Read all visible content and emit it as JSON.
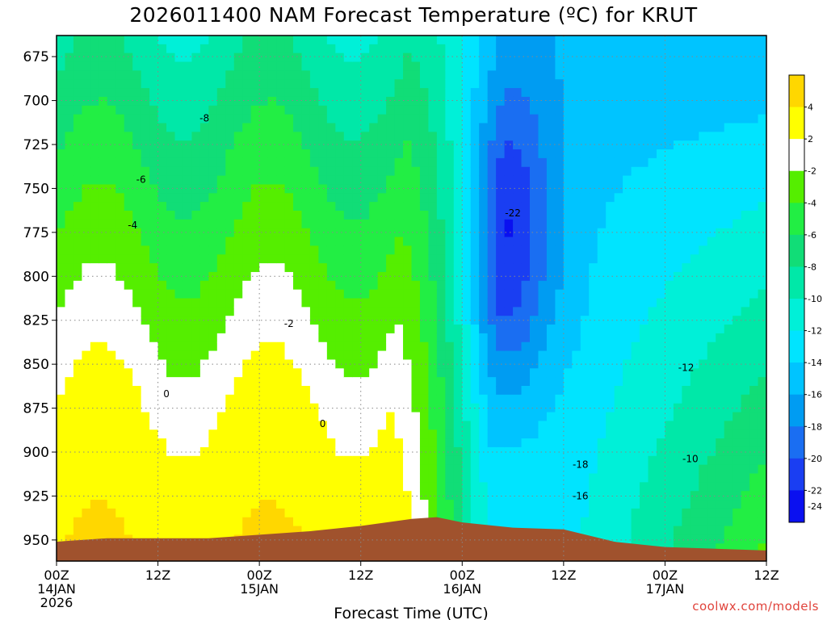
{
  "chart_data": {
    "type": "heatmap",
    "title": "2026011400 NAM Forecast Temperature (ºC) for KRUT",
    "xlabel": "Forecast Time (UTC)",
    "ylabel": "",
    "x_unit": "hours since 2026-01-14 00Z",
    "x_range": [
      0,
      84
    ],
    "y_range": [
      962,
      663
    ],
    "y_axis": "pressure (hPa), decreasing upward",
    "y_ticks": [
      675,
      700,
      725,
      750,
      775,
      800,
      825,
      850,
      875,
      900,
      925,
      950
    ],
    "x_ticks": [
      {
        "x": 0,
        "label": "00Z",
        "sub": "14JAN",
        "sub2": "2026"
      },
      {
        "x": 12,
        "label": "12Z",
        "sub": "",
        "sub2": ""
      },
      {
        "x": 24,
        "label": "00Z",
        "sub": "15JAN",
        "sub2": ""
      },
      {
        "x": 36,
        "label": "12Z",
        "sub": "",
        "sub2": ""
      },
      {
        "x": 48,
        "label": "00Z",
        "sub": "16JAN",
        "sub2": ""
      },
      {
        "x": 60,
        "label": "12Z",
        "sub": "",
        "sub2": ""
      },
      {
        "x": 72,
        "label": "00Z",
        "sub": "17JAN",
        "sub2": ""
      },
      {
        "x": 84,
        "label": "12Z",
        "sub": "",
        "sub2": ""
      }
    ],
    "grid": true,
    "legend": "colorbar right",
    "colorbar": {
      "levels": [
        4,
        2,
        -2,
        -4,
        -6,
        -8,
        -10,
        -12,
        -14,
        -16,
        -18,
        -20,
        -22,
        -24
      ],
      "colors": [
        "#ffd700",
        "#ffff00",
        "#ffffff",
        "#55ee00",
        "#22ee44",
        "#11dd77",
        "#00e8a8",
        "#00f0d8",
        "#00e4ff",
        "#00c4ff",
        "#009cf2",
        "#1a6ef2",
        "#1a3ef2",
        "#0a10f0"
      ]
    },
    "freezing_line_color": "#c8247a",
    "terrain_color": "#a0522d",
    "bands": [
      {
        "t": 0,
        "x": [
          0,
          3,
          6,
          9,
          12,
          15,
          18,
          21,
          24,
          27,
          30,
          33,
          36,
          39,
          42,
          45,
          48,
          51,
          54,
          57,
          60,
          63,
          66,
          69,
          72,
          75,
          78,
          81,
          84
        ],
        "top": [
          663,
          663,
          663,
          663,
          663,
          663,
          663,
          663,
          663,
          663,
          663,
          663,
          663,
          663,
          663,
          663,
          663,
          663,
          663,
          663,
          663,
          663,
          663,
          663,
          663,
          663,
          663,
          663,
          663
        ]
      }
    ],
    "isotherm_labels": [
      {
        "x": 17.5,
        "p": 710,
        "text": "-8"
      },
      {
        "x": 10,
        "p": 745,
        "text": "-6"
      },
      {
        "x": 9,
        "p": 771,
        "text": "-4"
      },
      {
        "x": 27.5,
        "p": 827,
        "text": "-2"
      },
      {
        "x": 13,
        "p": 867,
        "text": "0"
      },
      {
        "x": 31.5,
        "p": 884,
        "text": "0"
      },
      {
        "x": 54,
        "p": 764,
        "text": "-22"
      },
      {
        "x": 74.5,
        "p": 852,
        "text": "-12"
      },
      {
        "x": 62,
        "p": 907,
        "text": "-18"
      },
      {
        "x": 62,
        "p": 925,
        "text": "-16"
      },
      {
        "x": 75,
        "p": 904,
        "text": "-10"
      }
    ]
  },
  "credit": "coolwx.com/models"
}
